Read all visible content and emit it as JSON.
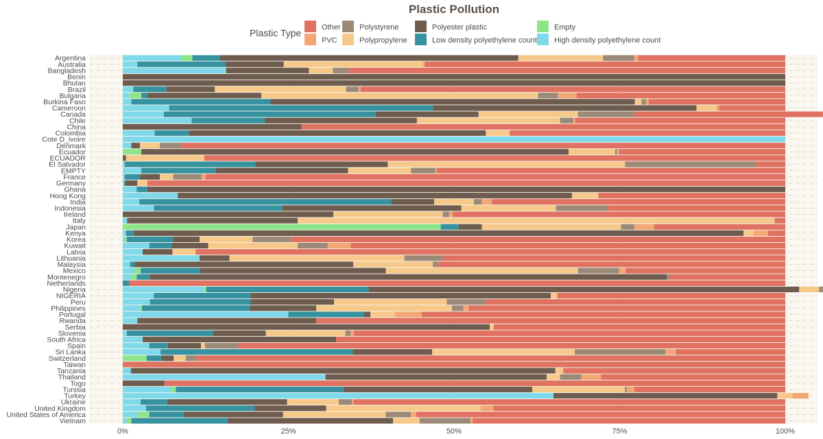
{
  "chart_data": {
    "type": "bar",
    "orientation": "horizontal",
    "stacked": true,
    "normalized": true,
    "title": "Plastic Pollution",
    "legend_title": "Plastic Type",
    "legend_position": "top",
    "xlim": [
      0,
      1
    ],
    "x_ticks": [
      "0%",
      "25%",
      "50%",
      "75%",
      "100%"
    ],
    "grid": "vertical dashed lines at 0%, 25%, 50%, 75%, 100%",
    "panel_background": "#faf6f0",
    "stack_order": [
      "hdpe",
      "empty",
      "ldpe",
      "pet",
      "pp",
      "ps",
      "pvc",
      "other"
    ],
    "legend": [
      {
        "key": "other",
        "label": "Other",
        "color": "#e07262"
      },
      {
        "key": "pvc",
        "label": "PVC",
        "color": "#f2a774"
      },
      {
        "key": "ps",
        "label": "Polystyrene",
        "color": "#9c8a78"
      },
      {
        "key": "pp",
        "label": "Polypropylene",
        "color": "#f6c98a"
      },
      {
        "key": "pet",
        "label": "Polyester plastic",
        "color": "#6e5c4f"
      },
      {
        "key": "ldpe",
        "label": "Low density polyethylene count",
        "color": "#36929f"
      },
      {
        "key": "empty",
        "label": "Empty",
        "color": "#8ee589"
      },
      {
        "key": "hdpe",
        "label": "High density polyethylene count",
        "color": "#7fd9ea"
      }
    ],
    "categories": [
      "Argentina",
      "Australia",
      "Bangladesh",
      "Benin",
      "Bhutan",
      "Brazil",
      "Bulgaria",
      "Burkina Faso",
      "Cameroon",
      "Canada",
      "Chile",
      "China",
      "Colombia",
      "Cote D_ivoire",
      "Denmark",
      "Ecuador",
      "ECUADOR",
      "El Salvador",
      "EMPTY",
      "France",
      "Germany",
      "Ghana",
      "Hong Kong",
      "India",
      "Indonesia",
      "Ireland",
      "Italy",
      "Japan",
      "Kenya",
      "Korea",
      "Kuwait",
      "Latvia",
      "Lithuania",
      "Malaysia",
      "Mexico",
      "Montenegro",
      "Netherlands",
      "Nigeria",
      "NIGERIA",
      "Peru",
      "Philippines",
      "Portugal",
      "Rwanda",
      "Serbia",
      "Slovenia",
      "South Africa",
      "Spain",
      "Sri Lanka",
      "Switzerland",
      "Taiwan",
      "Tanzania",
      "Thailand",
      "Togo",
      "Tunisia",
      "Turkey",
      "Ukraine",
      "United Kingdom",
      "United States of America",
      "Vietnam"
    ],
    "series": [
      {
        "key": "hdpe",
        "name": "High density polyethylene count",
        "values": [
          0.088,
          0.022,
          0.156,
          0,
          0,
          0.016,
          0.01,
          0.013,
          0.07,
          0.062,
          0.104,
          0,
          0.048,
          1.0,
          0.013,
          0,
          0,
          0.003,
          0.028,
          0.003,
          0,
          0.021,
          0.083,
          0.025,
          0.047,
          0,
          0.006,
          0,
          0.005,
          0.003,
          0.04,
          0.03,
          0.116,
          0.011,
          0.018,
          0.013,
          0,
          0.123,
          0.047,
          0.041,
          0.026,
          0.25,
          0.022,
          0,
          0.006,
          0.03,
          0.04,
          0.057,
          0,
          0,
          0.012,
          0.306,
          0,
          0.073,
          0.65,
          0.027,
          0.035,
          0.022,
          0.006
        ]
      },
      {
        "key": "empty",
        "name": "Empty",
        "values": [
          0.017,
          0,
          0,
          0,
          0,
          0,
          0.018,
          0,
          0,
          0,
          0,
          0,
          0,
          0,
          0,
          0.028,
          0,
          0,
          0,
          0,
          0.002,
          0,
          0,
          0,
          0,
          0,
          0,
          0.48,
          0,
          0.003,
          0,
          0,
          0,
          0,
          0.009,
          0.008,
          0,
          0.003,
          0,
          0,
          0.003,
          0,
          0,
          0,
          0,
          0,
          0,
          0,
          0.036,
          0,
          0,
          0,
          0,
          0.007,
          0,
          0,
          0,
          0.018,
          0.007
        ]
      },
      {
        "key": "ldpe",
        "name": "Low density polyethylene count",
        "values": [
          0.042,
          0.133,
          0,
          0,
          0,
          0.05,
          0.009,
          0.21,
          0.398,
          0.32,
          0.11,
          0,
          0.052,
          0,
          0,
          0,
          0,
          0.197,
          0.112,
          0.023,
          0.002,
          0.016,
          0,
          0.38,
          0.194,
          0,
          0.002,
          0.027,
          0.012,
          0.07,
          0.034,
          0,
          0,
          0.007,
          0.09,
          0.02,
          0.01,
          0.245,
          0.146,
          0.152,
          0.163,
          0.114,
          0,
          0,
          0.13,
          0,
          0.028,
          0.29,
          0.023,
          0,
          0.001,
          0,
          0,
          0.253,
          0,
          0.04,
          0.164,
          0.052,
          0.145
        ]
      },
      {
        "key": "pet",
        "name": "Polyester plastic",
        "values": [
          0.45,
          0.088,
          0.125,
          1.0,
          1.0,
          0.073,
          0.172,
          0.55,
          0.398,
          0.155,
          0.23,
          0.27,
          0.448,
          0,
          0.013,
          0.645,
          0.005,
          0.2,
          0.2,
          0.03,
          0.018,
          0.963,
          0.595,
          0.065,
          0.27,
          0.318,
          0.256,
          0.035,
          0.92,
          0.04,
          0.055,
          0.045,
          0.045,
          0.33,
          0.28,
          0.78,
          0,
          0.65,
          0.453,
          0.126,
          0.1,
          0.01,
          0.27,
          0.554,
          0.08,
          0.292,
          0.05,
          0.12,
          0.018,
          0,
          0.64,
          0.334,
          0.063,
          0.285,
          0.338,
          0.181,
          0.108,
          0.15,
          0.25
        ]
      },
      {
        "key": "pp",
        "name": "Polypropylene",
        "values": [
          0.128,
          0.21,
          0.036,
          0,
          0,
          0.198,
          0.418,
          0.01,
          0.03,
          0.15,
          0.216,
          0,
          0.036,
          0,
          0.03,
          0.07,
          0.118,
          0.358,
          0.095,
          0.02,
          0.015,
          0,
          0.04,
          0.06,
          0.143,
          0.165,
          0.72,
          0.21,
          0.015,
          0.08,
          0.135,
          0.035,
          0.264,
          0.12,
          0.29,
          0,
          0,
          0.03,
          0.01,
          0.17,
          0.205,
          0.037,
          0,
          0.006,
          0.12,
          0,
          0.006,
          0.215,
          0.018,
          0,
          0.012,
          0.02,
          0,
          0.14,
          0.023,
          0.078,
          0.233,
          0.155,
          0.04
        ]
      },
      {
        "key": "ps",
        "name": "Polystyrene",
        "values": [
          0.047,
          0,
          0.024,
          0,
          0,
          0.019,
          0.03,
          0.007,
          0,
          0.085,
          0.02,
          0,
          0,
          0,
          0.033,
          0.003,
          0,
          0.198,
          0.037,
          0.043,
          0,
          0,
          0,
          0.012,
          0.078,
          0.01,
          0,
          0.02,
          0,
          0.058,
          0.045,
          0,
          0.058,
          0.008,
          0.062,
          0.004,
          0,
          0.032,
          0,
          0.058,
          0.017,
          0,
          0,
          0,
          0.008,
          0,
          0.05,
          0.137,
          0.016,
          0,
          0,
          0.032,
          0,
          0.003,
          0,
          0.02,
          0,
          0.038,
          0.077
        ]
      },
      {
        "key": "pvc",
        "name": "PVC",
        "values": [
          0.006,
          0.003,
          0,
          0,
          0,
          0.003,
          0.028,
          0.004,
          0.004,
          0,
          0.003,
          0,
          0,
          0,
          0,
          0.003,
          0,
          0,
          0.002,
          0.006,
          0,
          0,
          0,
          0.015,
          0,
          0.005,
          0,
          0.03,
          0.022,
          0,
          0.035,
          0,
          0,
          0,
          0.01,
          0,
          0,
          0,
          0,
          0,
          0.008,
          0.04,
          0,
          0,
          0.005,
          0,
          0,
          0.016,
          0,
          0,
          0,
          0.03,
          0,
          0.011,
          0.024,
          0.002,
          0.02,
          0.008,
          0.003
        ]
      },
      {
        "key": "other",
        "name": "Other",
        "values": [
          0.222,
          0.544,
          0.659,
          0,
          0,
          0.641,
          0.315,
          0.206,
          0.1,
          0.308,
          0.317,
          0.73,
          0.416,
          0,
          0.911,
          0.251,
          0.877,
          0.044,
          0.526,
          0.875,
          0.963,
          0,
          0.282,
          0.443,
          0.268,
          0.502,
          0.016,
          0.198,
          0.026,
          0.746,
          0.656,
          0.89,
          0.517,
          0.524,
          0.241,
          0.175,
          0.99,
          0.082,
          0.344,
          0.453,
          0.478,
          0.549,
          0.708,
          0.44,
          0.651,
          0.678,
          0.826,
          0.165,
          0.889,
          1.0,
          0.335,
          0.278,
          0.937,
          0.228,
          0,
          0.652,
          0.44,
          0.557,
          0.472
        ]
      }
    ]
  }
}
